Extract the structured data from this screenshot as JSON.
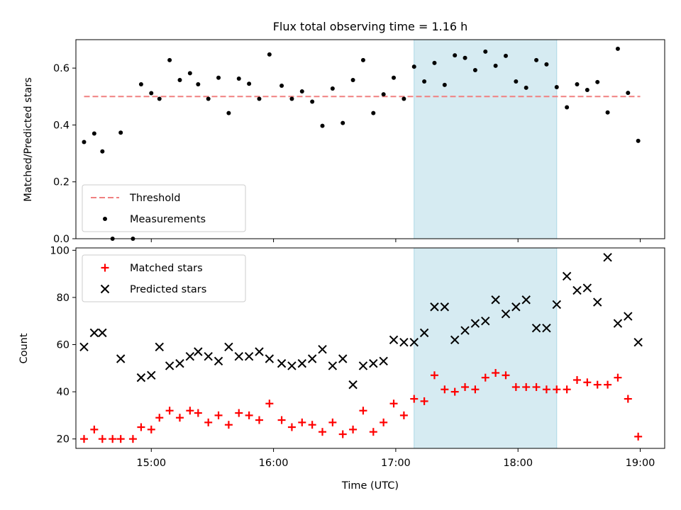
{
  "title": "Flux total observing time = 1.16 h",
  "chart_data": [
    {
      "type": "scatter",
      "panel": "top",
      "ylabel": "Matched/Predicted stars",
      "ylim": [
        0,
        0.7
      ],
      "yticks": [
        0.0,
        0.2,
        0.4,
        0.6
      ],
      "ytick_labels": [
        "0.0",
        "0.2",
        "0.4",
        "0.6"
      ],
      "xlim": [
        "14:23",
        "19:12"
      ],
      "highlight_span": [
        "17:09",
        "18:19"
      ],
      "highlight_color": "#add8e6",
      "legend_position": "lower-left",
      "series": [
        {
          "name": "Threshold",
          "style": "dashed-line",
          "color": "#f08080",
          "points": [
            {
              "x": "14:27",
              "y": 0.5
            },
            {
              "x": "19:00",
              "y": 0.5
            }
          ]
        },
        {
          "name": "Measurements",
          "style": "dot",
          "color": "#000000",
          "points": [
            {
              "x": "14:27",
              "y": 0.34
            },
            {
              "x": "14:32",
              "y": 0.37
            },
            {
              "x": "14:36",
              "y": 0.307
            },
            {
              "x": "14:41",
              "y": 0.0
            },
            {
              "x": "14:45",
              "y": 0.373
            },
            {
              "x": "14:51",
              "y": 0.0
            },
            {
              "x": "14:55",
              "y": 0.543
            },
            {
              "x": "15:00",
              "y": 0.512
            },
            {
              "x": "15:04",
              "y": 0.492
            },
            {
              "x": "15:09",
              "y": 0.628
            },
            {
              "x": "15:14",
              "y": 0.558
            },
            {
              "x": "15:19",
              "y": 0.582
            },
            {
              "x": "15:23",
              "y": 0.543
            },
            {
              "x": "15:28",
              "y": 0.492
            },
            {
              "x": "15:33",
              "y": 0.566
            },
            {
              "x": "15:38",
              "y": 0.442
            },
            {
              "x": "15:43",
              "y": 0.563
            },
            {
              "x": "15:48",
              "y": 0.545
            },
            {
              "x": "15:53",
              "y": 0.492
            },
            {
              "x": "15:58",
              "y": 0.648
            },
            {
              "x": "16:04",
              "y": 0.538
            },
            {
              "x": "16:09",
              "y": 0.492
            },
            {
              "x": "16:14",
              "y": 0.518
            },
            {
              "x": "16:19",
              "y": 0.482
            },
            {
              "x": "16:24",
              "y": 0.397
            },
            {
              "x": "16:29",
              "y": 0.528
            },
            {
              "x": "16:34",
              "y": 0.407
            },
            {
              "x": "16:39",
              "y": 0.558
            },
            {
              "x": "16:44",
              "y": 0.628
            },
            {
              "x": "16:49",
              "y": 0.442
            },
            {
              "x": "16:54",
              "y": 0.508
            },
            {
              "x": "16:59",
              "y": 0.566
            },
            {
              "x": "17:04",
              "y": 0.492
            },
            {
              "x": "17:09",
              "y": 0.605
            },
            {
              "x": "17:14",
              "y": 0.553
            },
            {
              "x": "17:19",
              "y": 0.618
            },
            {
              "x": "17:24",
              "y": 0.541
            },
            {
              "x": "17:29",
              "y": 0.645
            },
            {
              "x": "17:34",
              "y": 0.636
            },
            {
              "x": "17:39",
              "y": 0.593
            },
            {
              "x": "17:44",
              "y": 0.658
            },
            {
              "x": "17:49",
              "y": 0.608
            },
            {
              "x": "17:54",
              "y": 0.643
            },
            {
              "x": "17:59",
              "y": 0.553
            },
            {
              "x": "18:04",
              "y": 0.531
            },
            {
              "x": "18:09",
              "y": 0.628
            },
            {
              "x": "18:14",
              "y": 0.613
            },
            {
              "x": "18:19",
              "y": 0.533
            },
            {
              "x": "18:24",
              "y": 0.462
            },
            {
              "x": "18:29",
              "y": 0.543
            },
            {
              "x": "18:34",
              "y": 0.523
            },
            {
              "x": "18:39",
              "y": 0.551
            },
            {
              "x": "18:44",
              "y": 0.444
            },
            {
              "x": "18:49",
              "y": 0.668
            },
            {
              "x": "18:54",
              "y": 0.513
            },
            {
              "x": "18:59",
              "y": 0.344
            }
          ]
        }
      ]
    },
    {
      "type": "scatter",
      "panel": "bottom",
      "xlabel": "Time (UTC)",
      "ylabel": "Count",
      "ylim": [
        16,
        101
      ],
      "yticks": [
        20,
        40,
        60,
        80,
        100
      ],
      "ytick_labels": [
        "20",
        "40",
        "60",
        "80",
        "100"
      ],
      "xlim": [
        "14:23",
        "19:12"
      ],
      "xticks": [
        "15:00",
        "16:00",
        "17:00",
        "18:00",
        "19:00"
      ],
      "xtick_labels": [
        "15:00",
        "16:00",
        "17:00",
        "18:00",
        "19:00"
      ],
      "highlight_span": [
        "17:09",
        "18:19"
      ],
      "highlight_color": "#add8e6",
      "legend_position": "upper-left",
      "series": [
        {
          "name": "Matched stars",
          "style": "plus",
          "color": "#ff0000",
          "points": [
            {
              "x": "14:27",
              "y": 20
            },
            {
              "x": "14:32",
              "y": 24
            },
            {
              "x": "14:36",
              "y": 20
            },
            {
              "x": "14:41",
              "y": 20
            },
            {
              "x": "14:45",
              "y": 20
            },
            {
              "x": "14:51",
              "y": 20
            },
            {
              "x": "14:55",
              "y": 25
            },
            {
              "x": "15:00",
              "y": 24
            },
            {
              "x": "15:04",
              "y": 29
            },
            {
              "x": "15:09",
              "y": 32
            },
            {
              "x": "15:14",
              "y": 29
            },
            {
              "x": "15:19",
              "y": 32
            },
            {
              "x": "15:23",
              "y": 31
            },
            {
              "x": "15:28",
              "y": 27
            },
            {
              "x": "15:33",
              "y": 30
            },
            {
              "x": "15:38",
              "y": 26
            },
            {
              "x": "15:43",
              "y": 31
            },
            {
              "x": "15:48",
              "y": 30
            },
            {
              "x": "15:53",
              "y": 28
            },
            {
              "x": "15:58",
              "y": 35
            },
            {
              "x": "16:04",
              "y": 28
            },
            {
              "x": "16:09",
              "y": 25
            },
            {
              "x": "16:14",
              "y": 27
            },
            {
              "x": "16:19",
              "y": 26
            },
            {
              "x": "16:24",
              "y": 23
            },
            {
              "x": "16:29",
              "y": 27
            },
            {
              "x": "16:34",
              "y": 22
            },
            {
              "x": "16:39",
              "y": 24
            },
            {
              "x": "16:44",
              "y": 32
            },
            {
              "x": "16:49",
              "y": 23
            },
            {
              "x": "16:54",
              "y": 27
            },
            {
              "x": "16:59",
              "y": 35
            },
            {
              "x": "17:04",
              "y": 30
            },
            {
              "x": "17:09",
              "y": 37
            },
            {
              "x": "17:14",
              "y": 36
            },
            {
              "x": "17:19",
              "y": 47
            },
            {
              "x": "17:24",
              "y": 41
            },
            {
              "x": "17:29",
              "y": 40
            },
            {
              "x": "17:34",
              "y": 42
            },
            {
              "x": "17:39",
              "y": 41
            },
            {
              "x": "17:44",
              "y": 46
            },
            {
              "x": "17:49",
              "y": 48
            },
            {
              "x": "17:54",
              "y": 47
            },
            {
              "x": "17:59",
              "y": 42
            },
            {
              "x": "18:04",
              "y": 42
            },
            {
              "x": "18:09",
              "y": 42
            },
            {
              "x": "18:14",
              "y": 41
            },
            {
              "x": "18:19",
              "y": 41
            },
            {
              "x": "18:24",
              "y": 41
            },
            {
              "x": "18:29",
              "y": 45
            },
            {
              "x": "18:34",
              "y": 44
            },
            {
              "x": "18:39",
              "y": 43
            },
            {
              "x": "18:44",
              "y": 43
            },
            {
              "x": "18:49",
              "y": 46
            },
            {
              "x": "18:54",
              "y": 37
            },
            {
              "x": "18:59",
              "y": 21
            }
          ]
        },
        {
          "name": "Predicted stars",
          "style": "cross",
          "color": "#000000",
          "points": [
            {
              "x": "14:27",
              "y": 59
            },
            {
              "x": "14:32",
              "y": 65
            },
            {
              "x": "14:36",
              "y": 65
            },
            {
              "x": "14:45",
              "y": 54
            },
            {
              "x": "14:55",
              "y": 46
            },
            {
              "x": "15:00",
              "y": 47
            },
            {
              "x": "15:04",
              "y": 59
            },
            {
              "x": "15:09",
              "y": 51
            },
            {
              "x": "15:14",
              "y": 52
            },
            {
              "x": "15:19",
              "y": 55
            },
            {
              "x": "15:23",
              "y": 57
            },
            {
              "x": "15:28",
              "y": 55
            },
            {
              "x": "15:33",
              "y": 53
            },
            {
              "x": "15:38",
              "y": 59
            },
            {
              "x": "15:43",
              "y": 55
            },
            {
              "x": "15:48",
              "y": 55
            },
            {
              "x": "15:53",
              "y": 57
            },
            {
              "x": "15:58",
              "y": 54
            },
            {
              "x": "16:04",
              "y": 52
            },
            {
              "x": "16:09",
              "y": 51
            },
            {
              "x": "16:14",
              "y": 52
            },
            {
              "x": "16:19",
              "y": 54
            },
            {
              "x": "16:24",
              "y": 58
            },
            {
              "x": "16:29",
              "y": 51
            },
            {
              "x": "16:34",
              "y": 54
            },
            {
              "x": "16:39",
              "y": 43
            },
            {
              "x": "16:44",
              "y": 51
            },
            {
              "x": "16:49",
              "y": 52
            },
            {
              "x": "16:54",
              "y": 53
            },
            {
              "x": "16:59",
              "y": 62
            },
            {
              "x": "17:04",
              "y": 61
            },
            {
              "x": "17:09",
              "y": 61
            },
            {
              "x": "17:14",
              "y": 65
            },
            {
              "x": "17:19",
              "y": 76
            },
            {
              "x": "17:24",
              "y": 76
            },
            {
              "x": "17:29",
              "y": 62
            },
            {
              "x": "17:34",
              "y": 66
            },
            {
              "x": "17:39",
              "y": 69
            },
            {
              "x": "17:44",
              "y": 70
            },
            {
              "x": "17:49",
              "y": 79
            },
            {
              "x": "17:54",
              "y": 73
            },
            {
              "x": "17:59",
              "y": 76
            },
            {
              "x": "18:04",
              "y": 79
            },
            {
              "x": "18:09",
              "y": 67
            },
            {
              "x": "18:14",
              "y": 67
            },
            {
              "x": "18:19",
              "y": 77
            },
            {
              "x": "18:24",
              "y": 89
            },
            {
              "x": "18:29",
              "y": 83
            },
            {
              "x": "18:34",
              "y": 84
            },
            {
              "x": "18:39",
              "y": 78
            },
            {
              "x": "18:44",
              "y": 97
            },
            {
              "x": "18:49",
              "y": 69
            },
            {
              "x": "18:54",
              "y": 72
            },
            {
              "x": "18:59",
              "y": 61
            }
          ]
        }
      ]
    }
  ]
}
